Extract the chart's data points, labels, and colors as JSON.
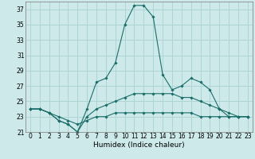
{
  "xlabel": "Humidex (Indice chaleur)",
  "background_color": "#cde9e9",
  "grid_color": "#aed4d4",
  "line_color": "#1a6e6a",
  "x_values": [
    0,
    1,
    2,
    3,
    4,
    5,
    6,
    7,
    8,
    9,
    10,
    11,
    12,
    13,
    14,
    15,
    16,
    17,
    18,
    19,
    20,
    21,
    22,
    23
  ],
  "series": [
    [
      24.0,
      24.0,
      23.5,
      22.5,
      22.0,
      21.0,
      24.0,
      27.5,
      28.0,
      30.0,
      35.0,
      37.5,
      37.5,
      36.0,
      28.5,
      26.5,
      27.0,
      28.0,
      27.5,
      26.5,
      24.0,
      23.0,
      23.0,
      23.0
    ],
    [
      24.0,
      24.0,
      23.5,
      22.5,
      22.0,
      21.0,
      23.0,
      24.0,
      24.5,
      25.0,
      25.5,
      26.0,
      26.0,
      26.0,
      26.0,
      26.0,
      25.5,
      25.5,
      25.0,
      24.5,
      24.0,
      23.5,
      23.0,
      23.0
    ],
    [
      24.0,
      24.0,
      23.5,
      23.0,
      22.5,
      22.0,
      22.5,
      23.0,
      23.0,
      23.5,
      23.5,
      23.5,
      23.5,
      23.5,
      23.5,
      23.5,
      23.5,
      23.5,
      23.0,
      23.0,
      23.0,
      23.0,
      23.0,
      23.0
    ]
  ],
  "ylim": [
    21,
    38
  ],
  "yticks": [
    21,
    23,
    25,
    27,
    29,
    31,
    33,
    35,
    37
  ],
  "xlim": [
    -0.5,
    23.5
  ],
  "xticks": [
    0,
    1,
    2,
    3,
    4,
    5,
    6,
    7,
    8,
    9,
    10,
    11,
    12,
    13,
    14,
    15,
    16,
    17,
    18,
    19,
    20,
    21,
    22,
    23
  ],
  "xtick_labels": [
    "0",
    "1",
    "2",
    "3",
    "4",
    "5",
    "6",
    "7",
    "8",
    "9",
    "10",
    "11",
    "12",
    "13",
    "14",
    "15",
    "16",
    "17",
    "18",
    "19",
    "20",
    "21",
    "22",
    "23"
  ],
  "marker": "D",
  "marker_size": 1.8,
  "line_width": 0.8,
  "tick_fontsize": 5.5,
  "xlabel_fontsize": 6.5
}
